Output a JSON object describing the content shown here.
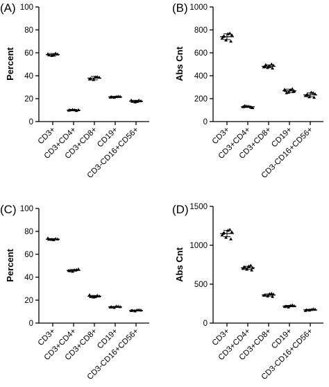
{
  "chart_data": [
    {
      "type": "scatter",
      "panel": "(A)",
      "ylabel": "Percent",
      "ylim": [
        0,
        100
      ],
      "yticks": [
        "0",
        "20",
        "40",
        "60",
        "80",
        "100"
      ],
      "categories": [
        "CD3+",
        "CD3+CD4+",
        "CD3+CD8+",
        "CD19+",
        "CD3-CD16+CD56+"
      ],
      "series": [
        {
          "values": [
            [
              58.0,
              59.5,
              57.5,
              58.8,
              59.0,
              57.8
            ],
            [
              10.0,
              9.5,
              10.5,
              10.2,
              9.8,
              10.1
            ],
            [
              37.5,
              39.0,
              36.5,
              38.5,
              37.0,
              38.8
            ],
            [
              21.5,
              22.0,
              21.0,
              21.8,
              21.2,
              21.6
            ],
            [
              17.5,
              18.5,
              17.0,
              18.0,
              18.6,
              17.4
            ]
          ]
        }
      ],
      "means": [
        58.4,
        10.0,
        37.9,
        21.5,
        17.8
      ],
      "sd": [
        1.0,
        0.6,
        1.5,
        0.5,
        0.8
      ]
    },
    {
      "type": "scatter",
      "panel": "(B)",
      "ylabel": "Abs Cnt",
      "ylim": [
        0,
        1000
      ],
      "yticks": [
        "0",
        "200",
        "400",
        "600",
        "800",
        "1000"
      ],
      "categories": [
        "CD3+",
        "CD3+CD4+",
        "CD3+CD8+",
        "CD19+",
        "CD3-CD16+CD56+"
      ],
      "series": [
        {
          "values": [
            [
              740,
              770,
              710,
              755,
              725,
              765,
              700,
              745
            ],
            [
              130,
              125,
              135,
              120,
              128,
              132,
              122,
              138
            ],
            [
              480,
              500,
              470,
              490,
              475,
              485,
              465,
              495
            ],
            [
              270,
              285,
              255,
              265,
              280,
              275,
              260,
              250
            ],
            [
              230,
              250,
              215,
              240,
              225,
              255,
              210,
              235
            ]
          ]
        }
      ],
      "means": [
        740,
        129,
        482,
        268,
        233
      ],
      "sd": [
        25,
        6,
        12,
        15,
        17
      ]
    },
    {
      "type": "scatter",
      "panel": "(C)",
      "ylabel": "Percent",
      "ylim": [
        0,
        100
      ],
      "yticks": [
        "0",
        "20",
        "40",
        "60",
        "80",
        "100"
      ],
      "categories": [
        "CD3+",
        "CD3+CD4+",
        "CD3+CD8+",
        "CD19+",
        "CD3-CD16+CD56+"
      ],
      "series": [
        {
          "values": [
            [
              73.0,
              73.5,
              72.8,
              73.2,
              74.0,
              72.5
            ],
            [
              45.5,
              46.5,
              45.0,
              47.0,
              45.8,
              46.2
            ],
            [
              23.0,
              24.0,
              22.5,
              23.5,
              24.5,
              22.8
            ],
            [
              14.0,
              14.5,
              13.5,
              14.2,
              13.8,
              14.6
            ],
            [
              11.0,
              11.5,
              10.5,
              11.2,
              10.8,
              11.3
            ]
          ]
        }
      ],
      "means": [
        73.2,
        46.0,
        23.4,
        14.1,
        11.0
      ],
      "sd": [
        0.5,
        0.7,
        0.7,
        0.4,
        0.4
      ]
    },
    {
      "type": "scatter",
      "panel": "(D)",
      "ylabel": "Abs Cnt",
      "ylim": [
        0,
        1500
      ],
      "yticks": [
        "0",
        "500",
        "1000",
        "1500"
      ],
      "categories": [
        "CD3+",
        "CD3+CD4+",
        "CD3+CD8+",
        "CD19+",
        "CD3-CD16+CD56+"
      ],
      "series": [
        {
          "values": [
            [
              1150,
              1200,
              1100,
              1170,
              1130,
              1190,
              1080,
              1160
            ],
            [
              720,
              740,
              690,
              710,
              700,
              730,
              680,
              715
            ],
            [
              360,
              380,
              345,
              370,
              355,
              375,
              340
            ],
            [
              215,
              230,
              205,
              220,
              210,
              225
            ],
            [
              170,
              180,
              165,
              175,
              160,
              172
            ]
          ]
        }
      ],
      "means": [
        1150,
        710,
        361,
        218,
        170
      ],
      "sd": [
        40,
        20,
        14,
        9,
        7
      ]
    }
  ]
}
